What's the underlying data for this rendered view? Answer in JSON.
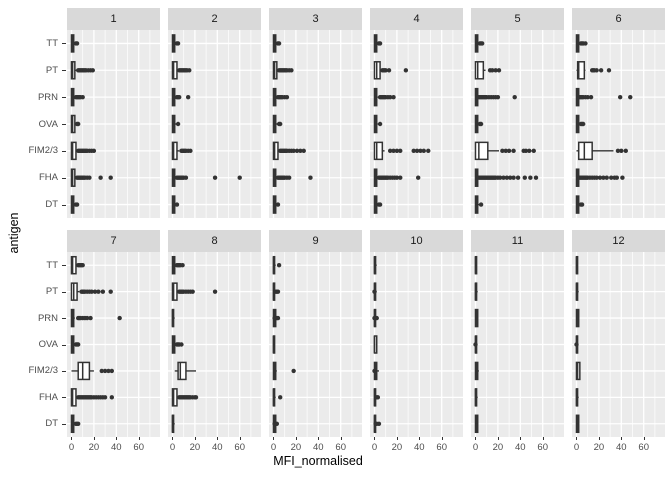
{
  "chart_data": {
    "type": "boxplot",
    "title": "",
    "xlabel": "MFI_normalised",
    "ylabel": "antigen",
    "x_ticks": [
      0,
      20,
      40,
      60
    ],
    "xlim": [
      -4,
      79
    ],
    "grid": {
      "major_x": [
        0,
        20,
        40,
        60
      ],
      "minor_x": [
        10,
        30,
        50,
        70
      ]
    },
    "categories": [
      "TT",
      "PT",
      "PRN",
      "OVA",
      "FIM2/3",
      "FHA",
      "DT"
    ],
    "facet_layout": {
      "rows": 2,
      "cols": 6
    },
    "box_stats_order": [
      "whisker_low",
      "q1",
      "median",
      "q3",
      "whisker_high",
      "outliers"
    ],
    "colors": {
      "panel_bg": "#EBEBEB",
      "strip_bg": "#D9D9D9",
      "grid": "#FFFFFF",
      "box_stroke": "#333333",
      "box_fill": "#FFFFFF",
      "outlier": "#333333",
      "axis_text": "#4D4D4D",
      "strip_text": "#1A1A1A",
      "title_text": "#000000"
    },
    "facets": [
      {
        "label": "1",
        "boxes": [
          [
            0,
            0,
            1,
            2,
            3,
            [
              4,
              5
            ]
          ],
          [
            0,
            0,
            1,
            3,
            5,
            [
              6,
              7,
              8,
              9,
              10,
              11,
              12,
              13,
              15,
              17,
              19
            ]
          ],
          [
            0,
            0,
            1,
            2,
            3,
            [
              4,
              5,
              6,
              7,
              8,
              10
            ]
          ],
          [
            0,
            0,
            1,
            3,
            4,
            [
              5,
              6
            ]
          ],
          [
            0,
            0,
            1,
            4,
            5,
            [
              6,
              7,
              8,
              9,
              10,
              11,
              12,
              13,
              14,
              16,
              18,
              20
            ]
          ],
          [
            0,
            0,
            1,
            3,
            4,
            [
              5,
              6,
              7,
              8,
              9,
              10,
              11,
              12,
              14,
              16,
              26,
              35
            ]
          ],
          [
            0,
            0,
            1,
            2,
            3,
            [
              4,
              5
            ]
          ]
        ]
      },
      {
        "label": "2",
        "boxes": [
          [
            0,
            0,
            1,
            2,
            3,
            [
              4,
              5
            ]
          ],
          [
            0,
            0,
            1,
            4,
            5,
            [
              6,
              7,
              8,
              9,
              10,
              11,
              12,
              13,
              15
            ]
          ],
          [
            0,
            0,
            1,
            2,
            3,
            [
              4,
              5,
              6,
              14
            ]
          ],
          [
            0,
            0,
            1,
            2,
            4,
            [
              5
            ]
          ],
          [
            0,
            0,
            1,
            4,
            6,
            [
              8,
              9,
              10,
              11,
              12,
              14,
              16
            ]
          ],
          [
            0,
            0,
            1,
            2,
            3,
            [
              4,
              5,
              6,
              7,
              8,
              9,
              10,
              12,
              38,
              60
            ]
          ],
          [
            0,
            0,
            1,
            2,
            3,
            [
              4
            ]
          ]
        ]
      },
      {
        "label": "3",
        "boxes": [
          [
            0,
            0,
            1,
            2,
            3,
            [
              4,
              5
            ]
          ],
          [
            0,
            0,
            1,
            3,
            4,
            [
              5,
              6,
              7,
              8,
              9,
              10,
              11,
              12,
              14,
              16
            ]
          ],
          [
            0,
            0,
            1,
            2,
            3,
            [
              4,
              5,
              6,
              7,
              8,
              10,
              12
            ]
          ],
          [
            0,
            0,
            1,
            2,
            4,
            [
              5,
              6
            ]
          ],
          [
            0,
            0,
            1,
            4,
            5,
            [
              6,
              7,
              8,
              9,
              10,
              11,
              12,
              14,
              16,
              18,
              21,
              24,
              27
            ]
          ],
          [
            0,
            0,
            1,
            2,
            3,
            [
              4,
              5,
              6,
              7,
              8,
              9,
              10,
              12,
              14,
              33
            ]
          ],
          [
            0,
            0,
            1,
            2,
            3,
            [
              4
            ]
          ]
        ]
      },
      {
        "label": "4",
        "boxes": [
          [
            0,
            0,
            1,
            2,
            3,
            [
              4,
              5
            ]
          ],
          [
            0,
            0,
            2,
            5,
            6,
            [
              7,
              8,
              9,
              10,
              13,
              28
            ]
          ],
          [
            0,
            0,
            1,
            2,
            3,
            [
              5,
              6,
              7,
              8,
              9,
              10,
              12,
              14,
              17
            ]
          ],
          [
            0,
            0,
            1,
            2,
            3,
            [
              5
            ]
          ],
          [
            0,
            0,
            2,
            7,
            9,
            [
              14,
              17,
              20,
              23,
              35,
              38,
              41,
              44,
              48
            ]
          ],
          [
            0,
            0,
            1,
            2,
            3,
            [
              4,
              5,
              6,
              7,
              8,
              9,
              10,
              11,
              12,
              14,
              16,
              18,
              20,
              23,
              39
            ]
          ],
          [
            0,
            0,
            1,
            2,
            3,
            [
              4,
              5
            ]
          ]
        ]
      },
      {
        "label": "5",
        "boxes": [
          [
            0,
            0,
            1,
            2,
            3,
            [
              4,
              5,
              6
            ]
          ],
          [
            0,
            0,
            2,
            7,
            9,
            [
              13,
              15,
              18,
              21
            ]
          ],
          [
            0,
            0,
            1,
            2,
            3,
            [
              3,
              4,
              5,
              6,
              7,
              8,
              9,
              10,
              12,
              14,
              16,
              18,
              20,
              35
            ]
          ],
          [
            0,
            0,
            1,
            2,
            3,
            [
              4,
              5
            ]
          ],
          [
            0,
            0,
            3,
            11,
            21,
            [
              24,
              27,
              30,
              34,
              43,
              45,
              48,
              52
            ]
          ],
          [
            0,
            0,
            1,
            2,
            3,
            [
              3,
              4,
              5,
              6,
              7,
              8,
              9,
              10,
              11,
              12,
              13,
              14,
              15,
              16,
              17,
              18,
              20,
              22,
              25,
              28,
              31,
              34,
              38,
              44,
              49,
              54
            ]
          ],
          [
            0,
            0,
            1,
            2,
            4,
            [
              5
            ]
          ]
        ]
      },
      {
        "label": "6",
        "boxes": [
          [
            0,
            0,
            1,
            2,
            3,
            [
              4,
              5,
              6,
              8
            ]
          ],
          [
            0,
            1,
            2,
            7,
            8,
            [
              14,
              15,
              16,
              18,
              22,
              29
            ]
          ],
          [
            0,
            0,
            1,
            2,
            3,
            [
              3,
              4,
              5,
              6,
              8,
              10,
              13,
              39,
              48
            ]
          ],
          [
            0,
            0,
            1,
            2,
            3,
            [
              4,
              5,
              6
            ]
          ],
          [
            0,
            2,
            7,
            14,
            33,
            [
              37,
              40,
              44
            ]
          ],
          [
            0,
            0,
            1,
            2,
            3,
            [
              3,
              4,
              5,
              6,
              7,
              8,
              9,
              10,
              12,
              14,
              16,
              18,
              21,
              24,
              27,
              31,
              34,
              36,
              41
            ]
          ],
          [
            0,
            0,
            1,
            2,
            3,
            [
              4,
              5
            ]
          ]
        ]
      },
      {
        "label": "7",
        "boxes": [
          [
            0,
            0,
            1,
            4,
            5,
            [
              6,
              7,
              8,
              9,
              10
            ]
          ],
          [
            0,
            0,
            2,
            5,
            7,
            [
              9,
              10,
              11,
              12,
              14,
              16,
              18,
              21,
              24,
              28,
              35
            ]
          ],
          [
            0,
            0,
            1,
            2,
            3,
            [
              6,
              7,
              8,
              10,
              12,
              14,
              17,
              43
            ]
          ],
          [
            0,
            0,
            1,
            2,
            3,
            [
              4,
              5,
              6
            ]
          ],
          [
            0,
            6,
            10,
            16,
            20,
            [
              27,
              30,
              33,
              36
            ]
          ],
          [
            0,
            0,
            1,
            4,
            5,
            [
              6,
              7,
              8,
              9,
              10,
              11,
              12,
              13,
              14,
              15,
              16,
              17,
              18,
              20,
              22,
              24,
              26,
              28,
              30,
              36
            ]
          ],
          [
            0,
            0,
            1,
            2,
            3,
            [
              4,
              5,
              6
            ]
          ]
        ]
      },
      {
        "label": "8",
        "boxes": [
          [
            0,
            0,
            1,
            2,
            3,
            [
              4,
              5,
              6,
              7,
              9
            ]
          ],
          [
            0,
            0,
            1,
            4,
            5,
            [
              6,
              7,
              8,
              9,
              10,
              12,
              14,
              16,
              18,
              38
            ]
          ],
          [
            0,
            0,
            0,
            1,
            2,
            []
          ],
          [
            0,
            0,
            1,
            2,
            3,
            [
              4,
              5,
              6,
              8
            ]
          ],
          [
            2,
            5,
            7,
            12,
            21,
            []
          ],
          [
            0,
            0,
            1,
            4,
            5,
            [
              6,
              7,
              8,
              9,
              10,
              11,
              12,
              13,
              14,
              15,
              16,
              18,
              20,
              21
            ]
          ],
          [
            0,
            0,
            0,
            1,
            2,
            []
          ]
        ]
      },
      {
        "label": "9",
        "boxes": [
          [
            0,
            0,
            0,
            1,
            2,
            [
              5
            ]
          ],
          [
            0,
            0,
            0,
            1,
            2,
            [
              2,
              3,
              4
            ]
          ],
          [
            0,
            0,
            1,
            2,
            3,
            [
              1,
              2,
              3,
              4
            ]
          ],
          [
            0,
            0,
            0,
            1,
            1,
            []
          ],
          [
            0,
            0,
            1,
            2,
            3,
            [
              18
            ]
          ],
          [
            0,
            0,
            0,
            1,
            2,
            [
              6
            ]
          ],
          [
            0,
            0,
            1,
            2,
            2,
            [
              1,
              2,
              3
            ]
          ]
        ]
      },
      {
        "label": "10",
        "boxes": [
          [
            0,
            0,
            0,
            1,
            2,
            []
          ],
          [
            0,
            0,
            0,
            1,
            2,
            [
              0
            ]
          ],
          [
            0,
            0,
            0,
            1,
            2,
            [
              0,
              1,
              2
            ]
          ],
          [
            0,
            0,
            0,
            2,
            2,
            []
          ],
          [
            0,
            0,
            1,
            2,
            4,
            [
              0
            ]
          ],
          [
            0,
            0,
            0,
            1,
            2,
            [
              2,
              3
            ]
          ],
          [
            0,
            0,
            0,
            1,
            2,
            [
              1,
              2,
              4
            ]
          ]
        ]
      },
      {
        "label": "11",
        "boxes": [
          [
            0,
            0,
            0,
            1,
            1,
            []
          ],
          [
            0,
            0,
            0,
            1,
            2,
            []
          ],
          [
            0,
            0,
            1,
            2,
            2,
            []
          ],
          [
            0,
            0,
            0,
            1,
            1,
            [
              0
            ]
          ],
          [
            0,
            0,
            1,
            2,
            3,
            []
          ],
          [
            0,
            0,
            0,
            1,
            2,
            []
          ],
          [
            0,
            0,
            1,
            2,
            2,
            []
          ]
        ]
      },
      {
        "label": "12",
        "boxes": [
          [
            0,
            0,
            0,
            1,
            1,
            []
          ],
          [
            0,
            0,
            0,
            1,
            2,
            []
          ],
          [
            0,
            0,
            1,
            2,
            2,
            []
          ],
          [
            0,
            0,
            0,
            1,
            1,
            [
              0
            ]
          ],
          [
            0,
            0,
            1,
            3,
            3,
            []
          ],
          [
            0,
            0,
            0,
            1,
            2,
            []
          ],
          [
            0,
            0,
            1,
            2,
            2,
            []
          ]
        ]
      }
    ]
  }
}
